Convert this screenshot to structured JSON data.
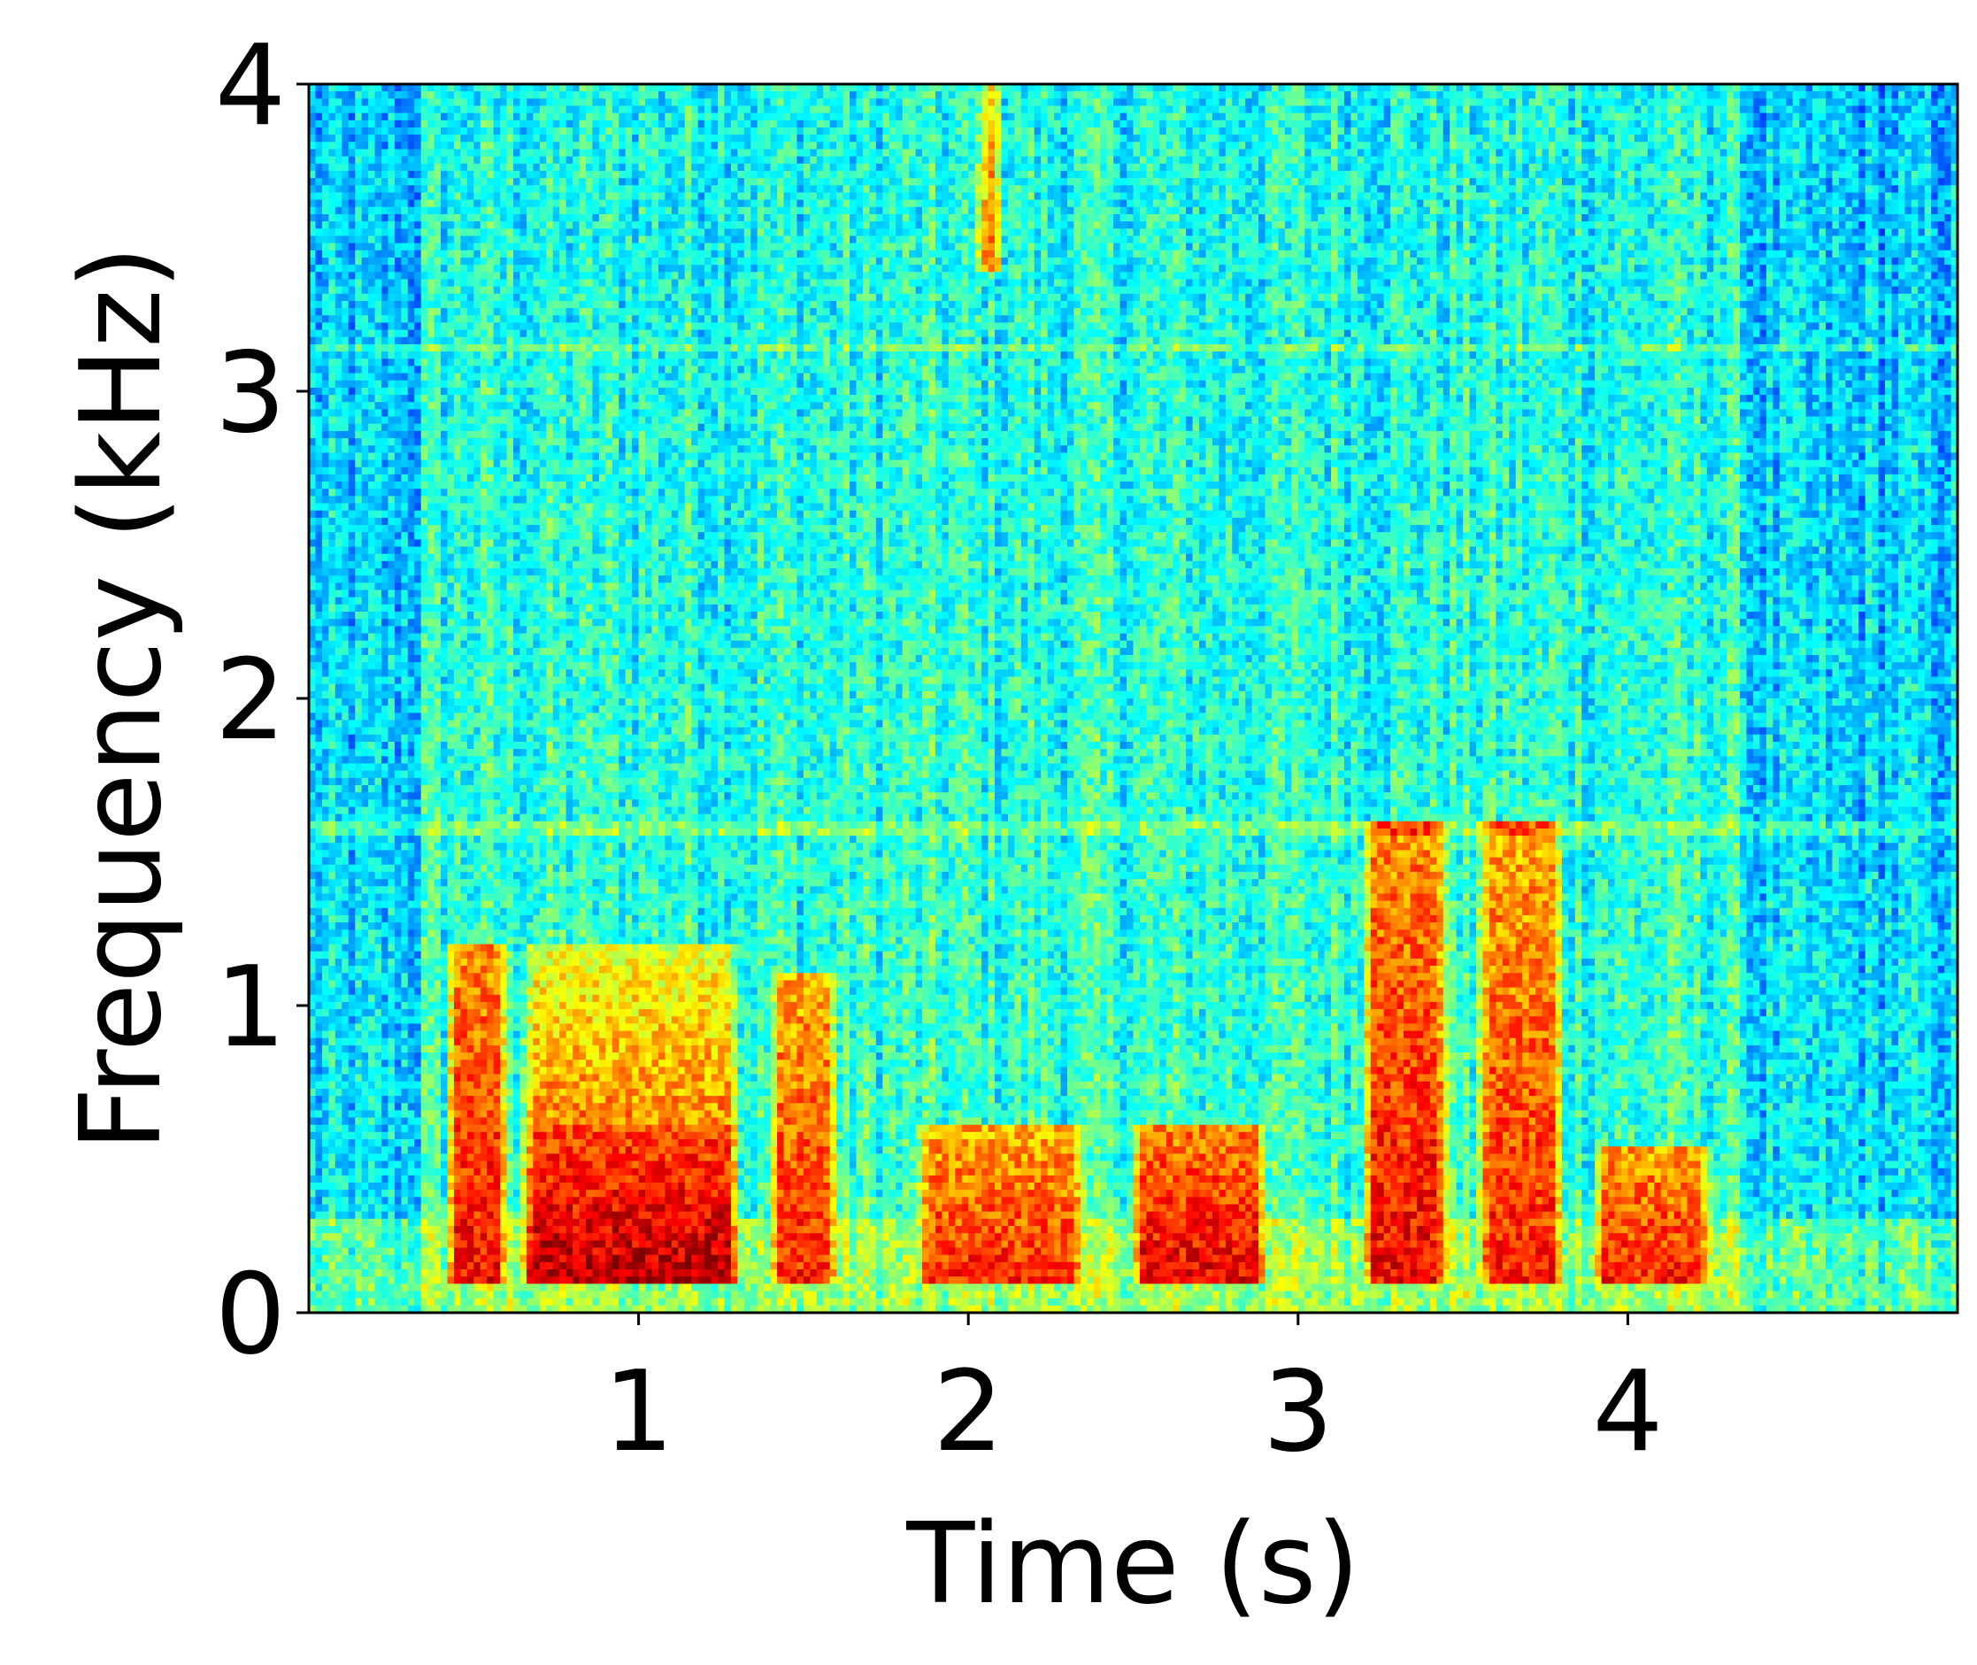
{
  "chart_data": {
    "type": "heatmap",
    "subtype": "spectrogram",
    "title": "",
    "xlabel": "Time (s)",
    "ylabel": "Frequency (kHz)",
    "xlim": [
      0,
      5
    ],
    "ylim": [
      0,
      4
    ],
    "x_ticks": [
      1,
      2,
      3,
      4
    ],
    "y_ticks": [
      0,
      1,
      2,
      3,
      4
    ],
    "colormap": "jet",
    "grid": false,
    "legend": "none",
    "energy_regions": [
      {
        "t_start": 0.42,
        "t_end": 0.6,
        "f_low": 0.1,
        "f_high": 1.2,
        "level": 0.88
      },
      {
        "t_start": 0.65,
        "t_end": 1.3,
        "f_low": 0.1,
        "f_high": 0.6,
        "level": 0.95
      },
      {
        "t_start": 0.65,
        "t_end": 1.3,
        "f_low": 0.6,
        "f_high": 1.2,
        "level": 0.75
      },
      {
        "t_start": 1.4,
        "t_end": 1.6,
        "f_low": 0.1,
        "f_high": 1.1,
        "level": 0.85
      },
      {
        "t_start": 1.85,
        "t_end": 2.35,
        "f_low": 0.1,
        "f_high": 0.6,
        "level": 0.85
      },
      {
        "t_start": 2.03,
        "t_end": 2.1,
        "f_low": 3.4,
        "f_high": 4.0,
        "level": 0.8
      },
      {
        "t_start": 2.5,
        "t_end": 2.9,
        "f_low": 0.1,
        "f_high": 0.6,
        "level": 0.9
      },
      {
        "t_start": 3.2,
        "t_end": 3.45,
        "f_low": 0.1,
        "f_high": 1.6,
        "level": 0.88
      },
      {
        "t_start": 3.55,
        "t_end": 3.8,
        "f_low": 0.1,
        "f_high": 1.6,
        "level": 0.85
      },
      {
        "t_start": 3.9,
        "t_end": 4.25,
        "f_low": 0.1,
        "f_high": 0.55,
        "level": 0.85
      }
    ],
    "harmonic_bands_khz": [
      1.57,
      3.14
    ]
  }
}
